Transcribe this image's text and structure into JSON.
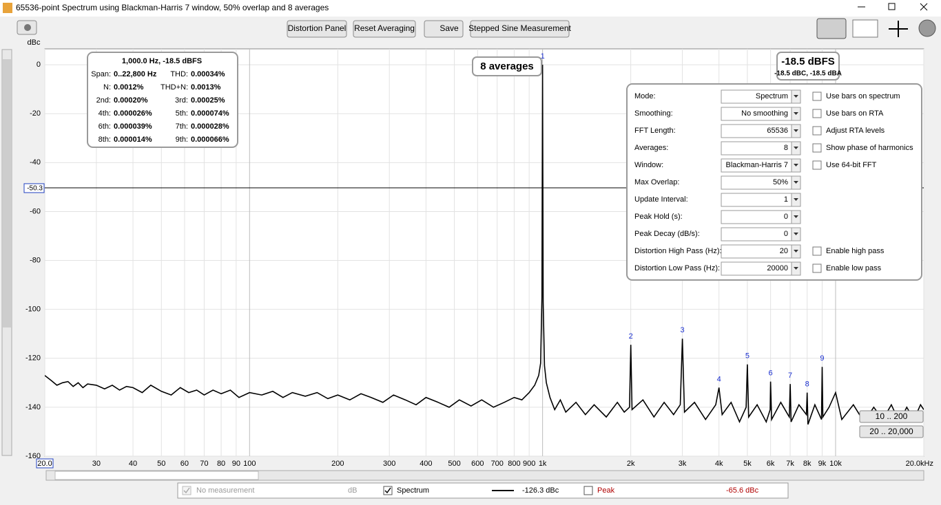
{
  "window": {
    "title": "65536-point Spectrum using Blackman-Harris 7 window, 50% overlap and 8 averages"
  },
  "toolbar": {
    "buttons": [
      "Distortion Panel",
      "Reset Averaging",
      "Save",
      "Stepped Sine Measurement"
    ]
  },
  "unit_selector": "dBc",
  "info_panel": {
    "header": "1,000.0 Hz, -18.5 dBFS",
    "rows": [
      [
        "Span:",
        "0..22,800 Hz",
        "THD:",
        "0.00034%"
      ],
      [
        "N:",
        "0.0012%",
        "THD+N:",
        "0.0013%"
      ],
      [
        "2nd:",
        "0.00020%",
        "3rd:",
        "0.00025%"
      ],
      [
        "4th:",
        "0.000026%",
        "5th:",
        "0.000074%"
      ],
      [
        "6th:",
        "0.000039%",
        "7th:",
        "0.000028%"
      ],
      [
        "8th:",
        "0.000014%",
        "9th:",
        "0.000066%"
      ]
    ]
  },
  "averages_badge": "8 averages",
  "level_badge": {
    "main": "-18.5 dBFS",
    "sub": "-18.5 dBC, -18.5 dBA"
  },
  "settings": {
    "rows": [
      {
        "label": "Mode:",
        "value": "Spectrum",
        "option": "Use bars on spectrum"
      },
      {
        "label": "Smoothing:",
        "value": "No  smoothing",
        "option": "Use bars on RTA"
      },
      {
        "label": "FFT Length:",
        "value": "65536",
        "option": "Adjust RTA levels"
      },
      {
        "label": "Averages:",
        "value": "8",
        "option": "Show phase of harmonics"
      },
      {
        "label": "Window:",
        "value": "Blackman-Harris 7",
        "option": "Use 64-bit FFT"
      },
      {
        "label": "Max Overlap:",
        "value": "50%"
      },
      {
        "label": "Update Interval:",
        "value": "1"
      },
      {
        "label": "Peak Hold (s):",
        "value": "0"
      },
      {
        "label": "Peak Decay (dB/s):",
        "value": "0"
      },
      {
        "label": "Distortion High Pass (Hz):",
        "value": "20",
        "option": "Enable high pass"
      },
      {
        "label": "Distortion Low Pass (Hz):",
        "value": "20000",
        "option": "Enable low pass"
      }
    ]
  },
  "range_buttons": [
    "10 .. 200",
    "20 .. 20,000"
  ],
  "legend": {
    "none_label": "No measurement",
    "none_unit": "dB",
    "spectrum_reading": "-126.3 dBc",
    "peak_label": "Peak",
    "peak_reading": "-65.6 dBc"
  },
  "chart_data": {
    "type": "line",
    "y_label": "dBc",
    "log_x": true,
    "grid": true,
    "xlim": [
      20,
      20000
    ],
    "ylim": [
      -160,
      6.5
    ],
    "xticks": [
      {
        "value": 20,
        "label": "20.0"
      },
      30,
      40,
      50,
      60,
      70,
      80,
      90,
      100,
      200,
      300,
      400,
      500,
      600,
      700,
      800,
      900,
      {
        "value": 1000,
        "label": "1k"
      },
      {
        "value": 2000,
        "label": "2k"
      },
      {
        "value": 3000,
        "label": "3k"
      },
      {
        "value": 4000,
        "label": "4k"
      },
      {
        "value": 5000,
        "label": "5k"
      },
      {
        "value": 6000,
        "label": "6k"
      },
      {
        "value": 7000,
        "label": "7k"
      },
      {
        "value": 8000,
        "label": "8k"
      },
      {
        "value": 9000,
        "label": "9k"
      },
      {
        "value": 10000,
        "label": "10k"
      },
      {
        "value": 20000,
        "label": "20.0kHz"
      }
    ],
    "yticks": [
      0,
      -20,
      -40,
      -60,
      -80,
      -100,
      -120,
      -140,
      -160
    ],
    "cursor": -50.3,
    "x": [
      20,
      21,
      22,
      23,
      24,
      25,
      26,
      27,
      28,
      30,
      32,
      34,
      36,
      38,
      40,
      43,
      46,
      50,
      54,
      58,
      62,
      66,
      70,
      75,
      80,
      86,
      92,
      100,
      110,
      120,
      130,
      140,
      155,
      170,
      185,
      200,
      220,
      240,
      260,
      285,
      310,
      340,
      370,
      400,
      440,
      480,
      520,
      570,
      620,
      680,
      740,
      800,
      850,
      900,
      940,
      970,
      985,
      995,
      1000,
      1005,
      1015,
      1030,
      1060,
      1100,
      1150,
      1200,
      1300,
      1400,
      1500,
      1650,
      1800,
      1900,
      1980,
      2000,
      2020,
      2200,
      2400,
      2600,
      2800,
      2950,
      3000,
      3050,
      3300,
      3600,
      3900,
      4000,
      4100,
      4400,
      4700,
      4950,
      5000,
      5050,
      5400,
      5800,
      5980,
      6000,
      6050,
      6500,
      6950,
      7000,
      7050,
      7500,
      7950,
      8000,
      8050,
      8500,
      8950,
      9000,
      9050,
      9500,
      10000,
      10500,
      11500,
      12500,
      13500,
      14500,
      15500,
      16500,
      17500,
      18500,
      19500,
      20000
    ],
    "series": [
      {
        "name": "Spectrum",
        "color": "#000000",
        "values": [
          -127,
          -129,
          -131,
          -130,
          -129.5,
          -131.5,
          -130,
          -132,
          -130.5,
          -131,
          -132.5,
          -131,
          -133,
          -131.5,
          -132,
          -134,
          -131,
          -133.5,
          -135,
          -132,
          -134,
          -133,
          -135,
          -133,
          -134.5,
          -133,
          -136,
          -134,
          -135,
          -133.5,
          -136,
          -134,
          -135.5,
          -134,
          -136.5,
          -135,
          -137,
          -134.5,
          -136,
          -138,
          -135,
          -137,
          -139,
          -136,
          -138,
          -140,
          -137,
          -139.5,
          -137,
          -140,
          -138,
          -136,
          -137,
          -134,
          -131,
          -127,
          -122,
          -95,
          0,
          -97,
          -123,
          -130,
          -136,
          -141,
          -137,
          -142,
          -138,
          -143,
          -139,
          -144,
          -138,
          -142,
          -140,
          -114.5,
          -141,
          -137,
          -144,
          -138,
          -143,
          -139,
          -112,
          -142,
          -138,
          -145,
          -139,
          -132,
          -143,
          -138,
          -146,
          -140,
          -122.5,
          -144,
          -139,
          -146,
          -141,
          -129.5,
          -145,
          -138,
          -144,
          -130.5,
          -146,
          -139,
          -143,
          -134,
          -147,
          -139,
          -145,
          -123.5,
          -144,
          -140,
          -134,
          -145,
          -139,
          -146,
          -140,
          -145,
          -139,
          -146,
          -140,
          -145,
          -139,
          -141
        ]
      }
    ],
    "harmonics": [
      {
        "label": "1",
        "x": 1000,
        "value": 0
      },
      {
        "label": "2",
        "x": 2000,
        "value": -114.5
      },
      {
        "label": "3",
        "x": 3000,
        "value": -112
      },
      {
        "label": "4",
        "x": 4000,
        "value": -132
      },
      {
        "label": "5",
        "x": 5000,
        "value": -122.5
      },
      {
        "label": "6",
        "x": 6000,
        "value": -129.5
      },
      {
        "label": "7",
        "x": 7000,
        "value": -130.5
      },
      {
        "label": "8",
        "x": 8000,
        "value": -134
      },
      {
        "label": "9",
        "x": 9000,
        "value": -123.5
      }
    ]
  }
}
